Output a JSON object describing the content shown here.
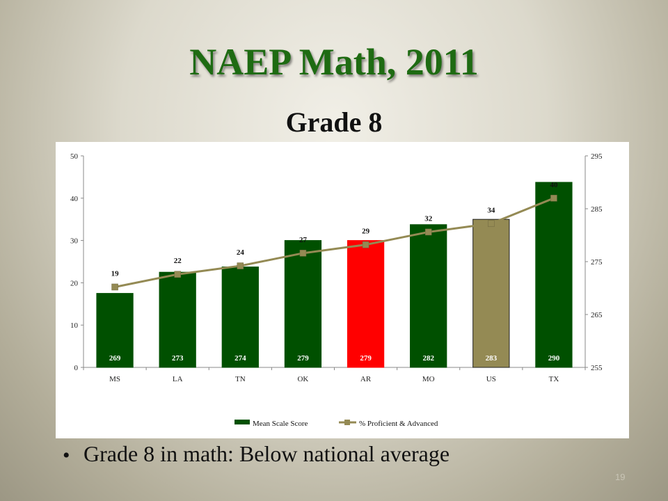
{
  "slide": {
    "title": "NAEP Math, 2011",
    "subtitle": "Grade 8",
    "bullet": "Grade 8 in math: Below national average",
    "page_number": "19"
  },
  "colors": {
    "bar_default": "#005000",
    "bar_highlight": "#ff0000",
    "bar_national": "#948a54",
    "line": "#948a54",
    "title_green": "#1e6b12"
  },
  "chart_data": {
    "type": "bar",
    "categories": [
      "MS",
      "LA",
      "TN",
      "OK",
      "AR",
      "MO",
      "US",
      "TX"
    ],
    "series": [
      {
        "name": "Mean Scale Score",
        "axis": "right",
        "values": [
          269,
          273,
          274,
          279,
          279,
          282,
          283,
          290
        ],
        "bar_colors": [
          "#005000",
          "#005000",
          "#005000",
          "#005000",
          "#ff0000",
          "#005000",
          "#948a54",
          "#005000"
        ]
      },
      {
        "name": "% Proficient & Advanced",
        "axis": "left",
        "type": "line",
        "values": [
          19,
          22,
          24,
          27,
          29,
          32,
          34,
          40
        ]
      }
    ],
    "y_left": {
      "min": 0,
      "max": 50,
      "ticks": [
        0,
        10,
        20,
        30,
        40,
        50
      ]
    },
    "y_right": {
      "min": 255,
      "max": 295,
      "ticks": [
        255,
        265,
        275,
        285,
        295
      ]
    },
    "legend_position": "bottom",
    "grid": false
  }
}
